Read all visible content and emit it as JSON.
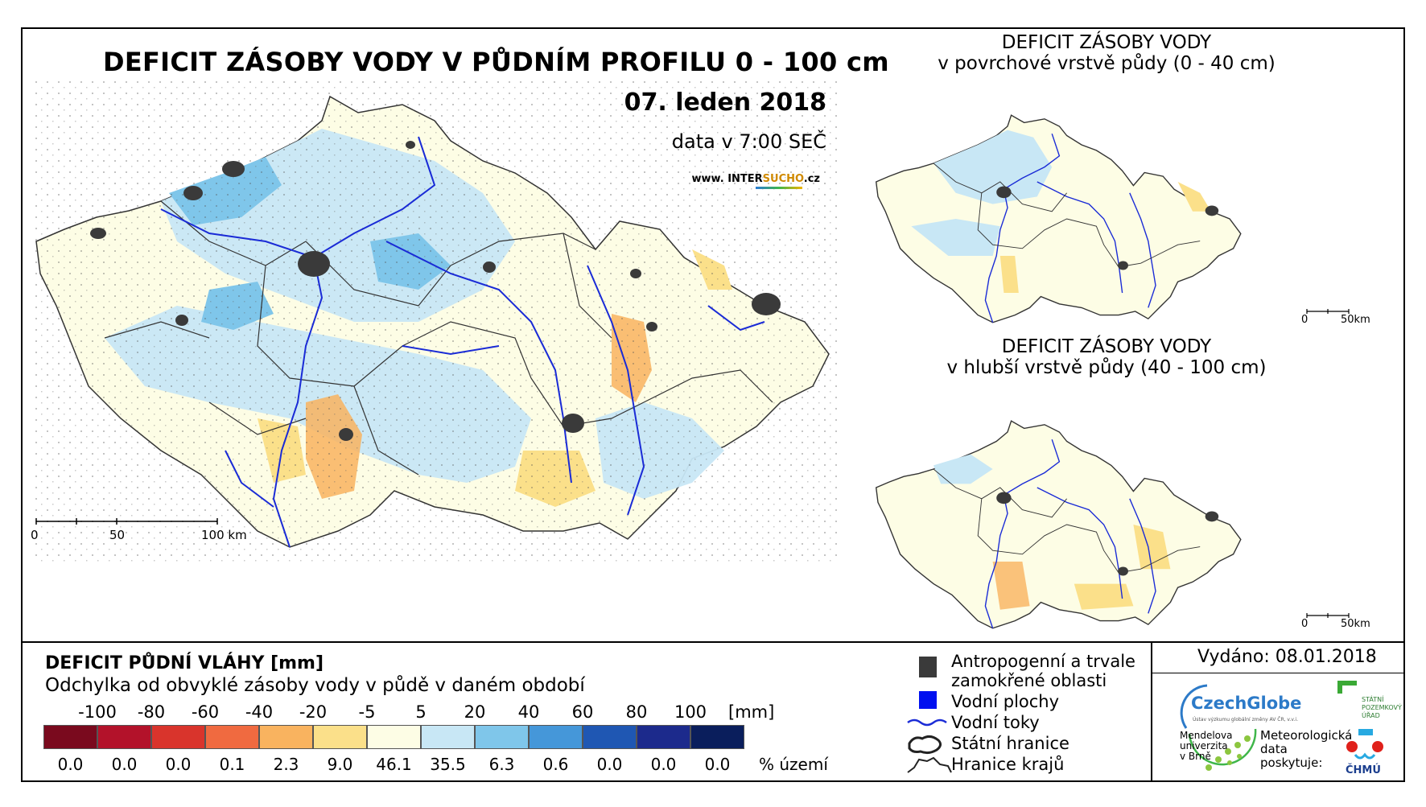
{
  "map": {
    "title": "DEFICIT ZÁSOBY VODY V PŮDNÍM PROFILU 0 - 100 cm",
    "date": "07. leden 2018",
    "data_time": "data v 7:00 SEČ",
    "web_prefix": "www. INTER",
    "web_brand": "SUCHO",
    "web_suffix": ".cz",
    "scalebar": {
      "labels": [
        "0",
        "50",
        "100 km"
      ]
    }
  },
  "inset_top": {
    "title_line1": "DEFICIT ZÁSOBY VODY",
    "title_line2": "v povrchové vrstvě půdy (0 - 40 cm)",
    "scalebar": {
      "labels": [
        "0",
        "50km"
      ]
    }
  },
  "inset_bottom": {
    "title_line1": "DEFICIT ZÁSOBY VODY",
    "title_line2": "v hlubší vrstvě půdy (40 - 100 cm)",
    "scalebar": {
      "labels": [
        "0",
        "50km"
      ]
    }
  },
  "legend": {
    "title": "DEFICIT PŮDNÍ VLÁHY [mm]",
    "subtitle": "Odchylka od obvyklé zásoby vody v půdě v daném období",
    "unit": "[mm]",
    "percent_unit": "% území",
    "breaks": [
      "-100",
      "-80",
      "-60",
      "-40",
      "-20",
      "-5",
      "5",
      "20",
      "40",
      "60",
      "80",
      "100"
    ],
    "colors": [
      "#7a0a1e",
      "#b3122a",
      "#d9342c",
      "#f06a40",
      "#f9b35f",
      "#fbe08a",
      "#fdfde5",
      "#c8e7f5",
      "#7fc6ea",
      "#4597d9",
      "#1f57b3",
      "#1c2a8c",
      "#0a1e5c"
    ],
    "percent_values": [
      "0.0",
      "0.0",
      "0.0",
      "0.1",
      "2.3",
      "9.0",
      "46.1",
      "35.5",
      "6.3",
      "0.6",
      "0.0",
      "0.0",
      "0.0"
    ]
  },
  "key": {
    "anthropogenic_line1": "Antropogenní a trvale",
    "anthropogenic_line2": "zamokřené oblasti",
    "water_bodies": "Vodní plochy",
    "rivers": "Vodní toky",
    "state_border": "Státní hranice",
    "region_border": "Hranice krajů"
  },
  "footer": {
    "issued": "Vydáno: 08.01.2018",
    "czechglobe": "CzechGlobe",
    "czechglobe_sub": "Ústav výzkumu globální změny AV ČR, v.v.i.",
    "mendel_line1": "Mendelova",
    "mendel_line2": "univerzita",
    "mendel_line3": "v Brně",
    "met_line1": "Meteorologická",
    "met_line2": "data",
    "met_line3": "poskytuje:",
    "spu_line1": "STÁTNÍ",
    "spu_line2": "POZEMKOVÝ",
    "spu_line3": "ÚŘAD",
    "chmu": "ČHMÚ"
  }
}
